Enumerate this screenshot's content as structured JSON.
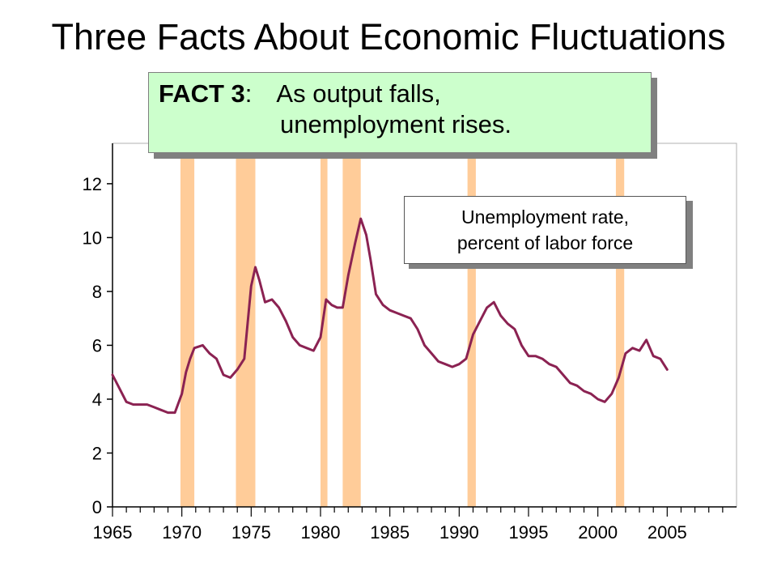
{
  "page": {
    "title": "Three Facts About Economic Fluctuations"
  },
  "fact_box": {
    "label": "FACT 3",
    "colon": ":",
    "line1": "As output falls,",
    "line2": "unemployment rises."
  },
  "legend_box": {
    "line1": "Unemployment rate,",
    "line2": "percent of labor force"
  },
  "colors": {
    "line": "#8b2252",
    "recession": "#ffcc99",
    "axis": "#000000",
    "fact_background": "#ccffcc"
  },
  "chart_data": {
    "type": "line",
    "title": "",
    "xlabel": "",
    "ylabel": "",
    "xlim": [
      1965,
      2010
    ],
    "ylim": [
      0,
      13.5
    ],
    "x_ticks": [
      1965,
      1970,
      1975,
      1980,
      1985,
      1990,
      1995,
      2000,
      2005
    ],
    "y_ticks": [
      0,
      2,
      4,
      6,
      8,
      10,
      12
    ],
    "grid": false,
    "recessions": [
      [
        1969.9,
        1970.9
      ],
      [
        1973.9,
        1975.3
      ],
      [
        1980.0,
        1980.5
      ],
      [
        1981.6,
        1982.9
      ],
      [
        1990.6,
        1991.2
      ],
      [
        2001.3,
        2001.9
      ]
    ],
    "series": [
      {
        "name": "Unemployment rate, percent of labor force",
        "x": [
          1965.0,
          1965.5,
          1966.0,
          1966.5,
          1967.0,
          1967.5,
          1968.0,
          1968.5,
          1969.0,
          1969.5,
          1970.0,
          1970.3,
          1970.6,
          1970.9,
          1971.5,
          1972.0,
          1972.5,
          1973.0,
          1973.5,
          1974.0,
          1974.5,
          1975.0,
          1975.3,
          1975.6,
          1976.0,
          1976.5,
          1977.0,
          1977.5,
          1978.0,
          1978.5,
          1979.0,
          1979.5,
          1980.0,
          1980.4,
          1980.8,
          1981.2,
          1981.6,
          1982.0,
          1982.5,
          1982.9,
          1983.3,
          1983.6,
          1984.0,
          1984.5,
          1985.0,
          1985.5,
          1986.0,
          1986.5,
          1987.0,
          1987.5,
          1988.0,
          1988.5,
          1989.0,
          1989.5,
          1990.0,
          1990.5,
          1991.0,
          1991.5,
          1992.0,
          1992.5,
          1993.0,
          1993.5,
          1994.0,
          1994.5,
          1995.0,
          1995.5,
          1996.0,
          1996.5,
          1997.0,
          1997.5,
          1998.0,
          1998.5,
          1999.0,
          1999.5,
          2000.0,
          2000.5,
          2001.0,
          2001.5,
          2002.0,
          2002.5,
          2003.0,
          2003.5,
          2004.0,
          2004.5,
          2005.0
        ],
        "y": [
          4.9,
          4.4,
          3.9,
          3.8,
          3.8,
          3.8,
          3.7,
          3.6,
          3.5,
          3.5,
          4.2,
          5.0,
          5.5,
          5.9,
          6.0,
          5.7,
          5.5,
          4.9,
          4.8,
          5.1,
          5.5,
          8.2,
          8.9,
          8.4,
          7.6,
          7.7,
          7.4,
          6.9,
          6.3,
          6.0,
          5.9,
          5.8,
          6.3,
          7.7,
          7.5,
          7.4,
          7.4,
          8.6,
          9.8,
          10.7,
          10.1,
          9.2,
          7.9,
          7.5,
          7.3,
          7.2,
          7.1,
          7.0,
          6.6,
          6.0,
          5.7,
          5.4,
          5.3,
          5.2,
          5.3,
          5.5,
          6.4,
          6.9,
          7.4,
          7.6,
          7.1,
          6.8,
          6.6,
          6.0,
          5.6,
          5.6,
          5.5,
          5.3,
          5.2,
          4.9,
          4.6,
          4.5,
          4.3,
          4.2,
          4.0,
          3.9,
          4.2,
          4.8,
          5.7,
          5.9,
          5.8,
          6.2,
          5.6,
          5.5,
          5.1
        ]
      }
    ]
  }
}
